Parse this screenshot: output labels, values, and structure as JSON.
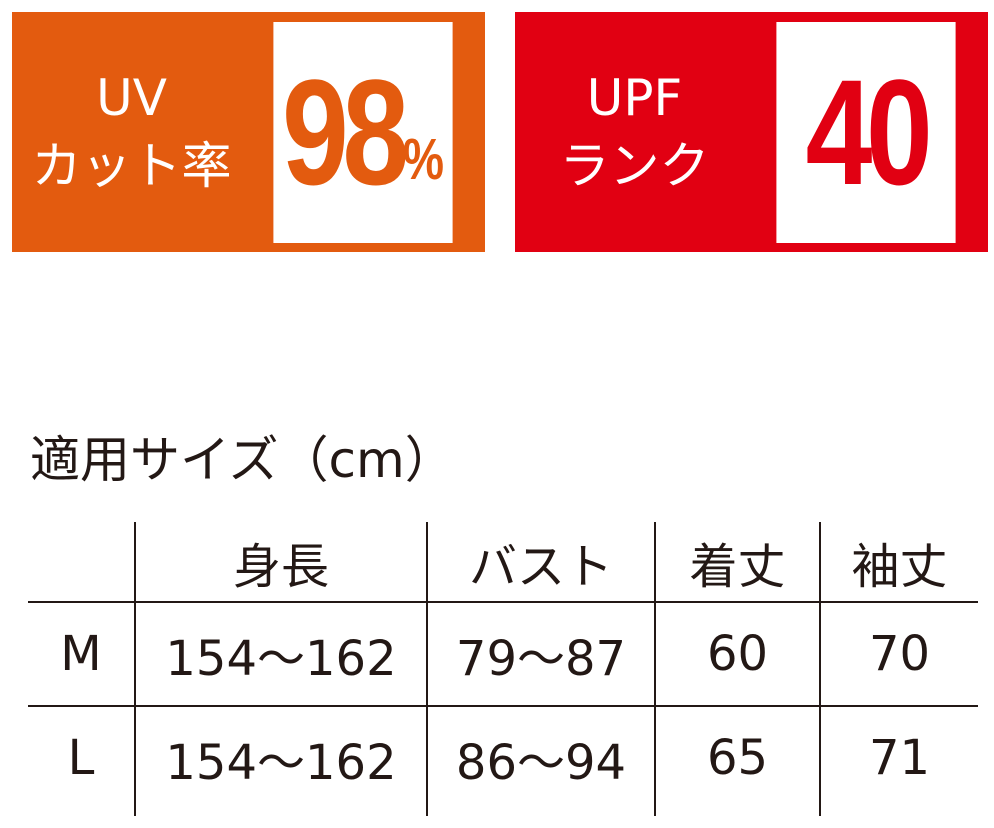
{
  "badges": [
    {
      "label_line1": "UV",
      "label_line2": "カット率",
      "value": "98",
      "unit": "%",
      "color": "#e35b0f"
    },
    {
      "label_line1": "UPF",
      "label_line2": "ランク",
      "value": "40",
      "unit": "",
      "color": "#e10012"
    }
  ],
  "size_table": {
    "title": "適用サイズ（cm）",
    "headers": [
      "",
      "身長",
      "バスト",
      "着丈",
      "袖丈"
    ],
    "rows": [
      [
        "M",
        "154～162",
        "79～87",
        "60",
        "70"
      ],
      [
        "L",
        "154～162",
        "86～94",
        "65",
        "71"
      ]
    ]
  }
}
